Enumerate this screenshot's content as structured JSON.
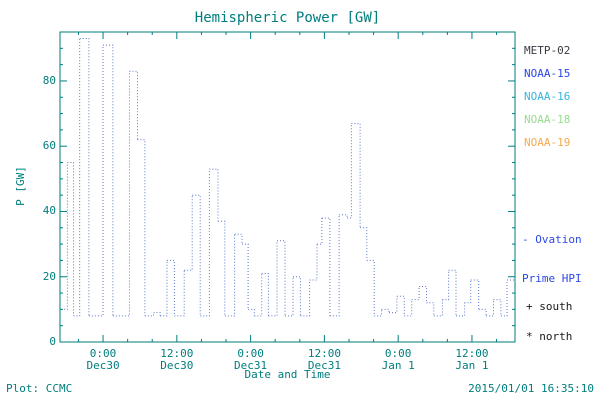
{
  "title": "Hemispheric Power [GW]",
  "footer": {
    "left": "Plot: CCMC",
    "right": "2015/01/01 16:35:10"
  },
  "legend": [
    {
      "label": "METP-02",
      "color": "#3a3a42"
    },
    {
      "label": "NOAA-15",
      "color": "#2a48e8"
    },
    {
      "label": "NOAA-16",
      "color": "#35b4e0"
    },
    {
      "label": "NOAA-18",
      "color": "#97dc8f"
    },
    {
      "label": "NOAA-19",
      "color": "#f8a94e"
    }
  ],
  "annotations": {
    "ovation_line1": "- Ovation",
    "ovation_line2": "Prime HPI",
    "ovation_color": "#2a48e8",
    "south": "+ south",
    "north": "* north"
  },
  "chart_data": {
    "type": "line",
    "subtype": "step-dotted",
    "title": "Hemispheric Power [GW]",
    "xlabel": "Date and Time",
    "ylabel": "P [GW]",
    "frame_color": "#007d7d",
    "text_color": "#007d7d",
    "grid": false,
    "legend_position": "right-outside",
    "ylim": [
      0,
      95
    ],
    "xlim": [
      -7,
      67
    ],
    "yticks": [
      0,
      20,
      40,
      60,
      80
    ],
    "xticks": [
      {
        "hour": 0,
        "time": "0:00",
        "date": "Dec30"
      },
      {
        "hour": 12,
        "time": "12:00",
        "date": "Dec30"
      },
      {
        "hour": 24,
        "time": "0:00",
        "date": "Dec31"
      },
      {
        "hour": 36,
        "time": "12:00",
        "date": "Dec31"
      },
      {
        "hour": 48,
        "time": "0:00",
        "date": "Jan 1"
      },
      {
        "hour": 60,
        "time": "12:00",
        "date": "Jan 1"
      }
    ],
    "series": [
      {
        "name": "Ovation Prime HPI (NOAA-15)",
        "color": "#5878c8",
        "units": "GW",
        "x_units": "hours from Dec30 00:00",
        "points": [
          [
            -6.8,
            10
          ],
          [
            -5.8,
            55
          ],
          [
            -4.8,
            8
          ],
          [
            -3.8,
            93
          ],
          [
            -2.3,
            8
          ],
          [
            0,
            91
          ],
          [
            1.6,
            8
          ],
          [
            4.3,
            83
          ],
          [
            5.6,
            62
          ],
          [
            6.8,
            8
          ],
          [
            8.2,
            9
          ],
          [
            9.3,
            8
          ],
          [
            10.4,
            25
          ],
          [
            11.6,
            8
          ],
          [
            13.2,
            22
          ],
          [
            14.5,
            45
          ],
          [
            15.8,
            8
          ],
          [
            17.3,
            53
          ],
          [
            18.7,
            37
          ],
          [
            19.8,
            8
          ],
          [
            21.4,
            33
          ],
          [
            22.6,
            30
          ],
          [
            23.6,
            10
          ],
          [
            24.6,
            8
          ],
          [
            25.8,
            21
          ],
          [
            26.9,
            8
          ],
          [
            28.3,
            31
          ],
          [
            29.6,
            8
          ],
          [
            30.9,
            20
          ],
          [
            32.1,
            8
          ],
          [
            33.6,
            19
          ],
          [
            34.8,
            30
          ],
          [
            35.6,
            38
          ],
          [
            36.9,
            8
          ],
          [
            38.4,
            39
          ],
          [
            39.7,
            38
          ],
          [
            40.4,
            67
          ],
          [
            41.8,
            35
          ],
          [
            42.9,
            25
          ],
          [
            44.1,
            8
          ],
          [
            45.3,
            10
          ],
          [
            46.5,
            9
          ],
          [
            47.8,
            14
          ],
          [
            49,
            8
          ],
          [
            50.2,
            13
          ],
          [
            51.4,
            17
          ],
          [
            52.6,
            12
          ],
          [
            53.8,
            8
          ],
          [
            55.2,
            13
          ],
          [
            56.2,
            22
          ],
          [
            57.4,
            8
          ],
          [
            58.8,
            12
          ],
          [
            59.8,
            19
          ],
          [
            61.1,
            10
          ],
          [
            62.3,
            8
          ],
          [
            63.5,
            13
          ],
          [
            64.7,
            8
          ],
          [
            65.7,
            19
          ],
          [
            67,
            19
          ]
        ]
      }
    ]
  }
}
